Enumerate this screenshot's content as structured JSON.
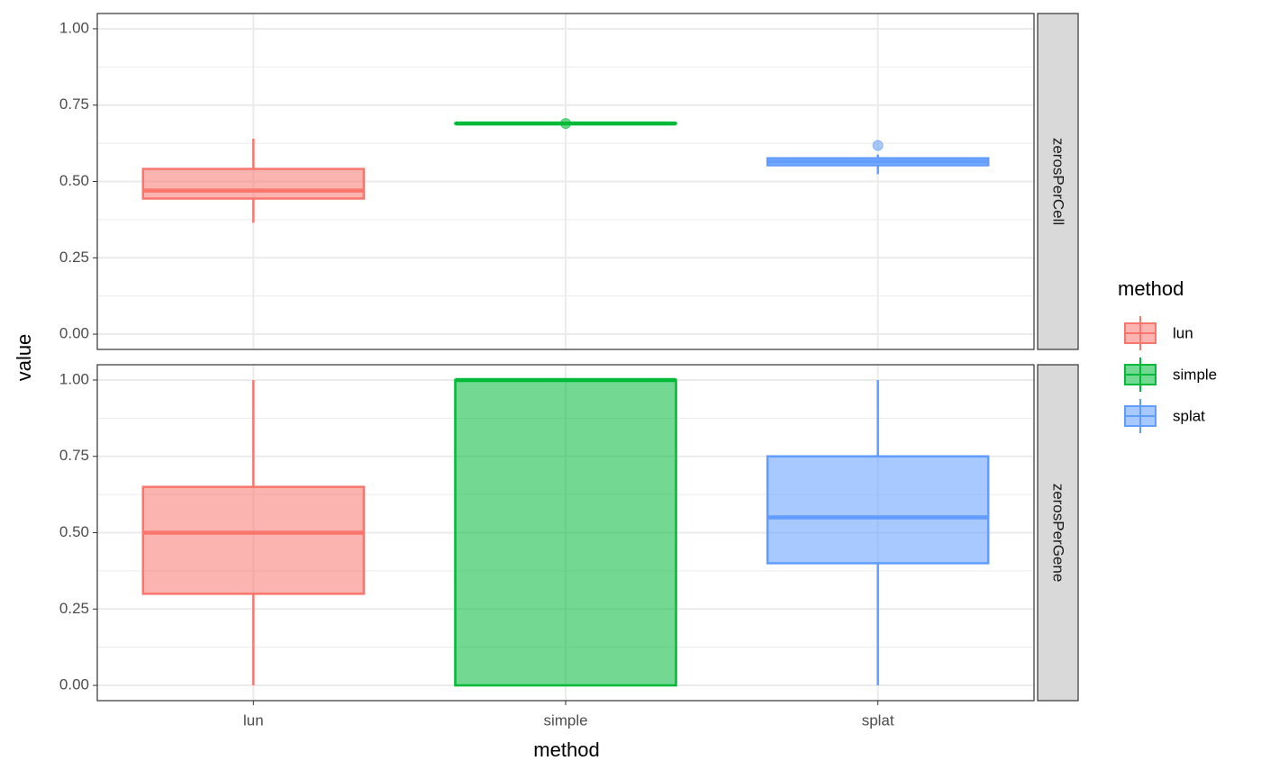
{
  "chart_data": {
    "type": "box",
    "xlabel": "method",
    "ylabel": "value",
    "legend_title": "method",
    "categories": [
      "lun",
      "simple",
      "splat"
    ],
    "colors": [
      "#F8766D",
      "#00BA38",
      "#619CFF"
    ],
    "grid": true,
    "minor_grid": true,
    "legend": "right",
    "facets": [
      {
        "label": "zerosPerCell",
        "ylim": [
          -0.05,
          1.05
        ],
        "yticks": [
          {
            "value": 0,
            "label": "0.00"
          },
          {
            "value": 0.25,
            "label": "0.25"
          },
          {
            "value": 0.5,
            "label": "0.50"
          },
          {
            "value": 0.75,
            "label": "0.75"
          },
          {
            "value": 1,
            "label": "1.00"
          }
        ],
        "boxes": [
          {
            "min": 0.365,
            "q1": 0.444,
            "median": 0.47,
            "q3": 0.541,
            "max": 0.64,
            "outliers": []
          },
          {
            "min": 0.69,
            "q1": 0.69,
            "median": 0.69,
            "q3": 0.69,
            "max": 0.69,
            "outliers": [
              0.69
            ]
          },
          {
            "min": 0.524,
            "q1": 0.553,
            "median": 0.565,
            "q3": 0.576,
            "max": 0.588,
            "outliers": [
              0.618
            ]
          }
        ]
      },
      {
        "label": "zerosPerGene",
        "ylim": [
          -0.05,
          1.05
        ],
        "yticks": [
          {
            "value": 0,
            "label": "0.00"
          },
          {
            "value": 0.25,
            "label": "0.25"
          },
          {
            "value": 0.5,
            "label": "0.50"
          },
          {
            "value": 0.75,
            "label": "0.75"
          },
          {
            "value": 1,
            "label": "1.00"
          }
        ],
        "boxes": [
          {
            "min": 0,
            "q1": 0.3,
            "median": 0.5,
            "q3": 0.65,
            "max": 1,
            "outliers": []
          },
          {
            "min": 0,
            "q1": 0,
            "median": 1,
            "q3": 1,
            "max": 1,
            "outliers": []
          },
          {
            "min": 0,
            "q1": 0.4,
            "median": 0.55,
            "q3": 0.75,
            "max": 1,
            "outliers": []
          }
        ]
      }
    ]
  }
}
